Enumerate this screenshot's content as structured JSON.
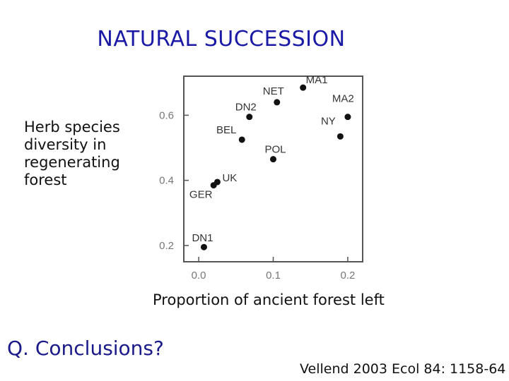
{
  "slide": {
    "title": "NATURAL SUCCESSION",
    "question": "Q. Conclusions?",
    "citation": "Vellend 2003 Ecol 84: 1158-64"
  },
  "chart_data": {
    "type": "scatter",
    "xlabel": "Proportion of ancient forest left",
    "ylabel": "Herb species\ndiversity in\nregenerating\nforest",
    "xlim": [
      -0.02,
      0.22
    ],
    "ylim": [
      0.15,
      0.72
    ],
    "xticks": [
      0.0,
      0.1,
      0.2
    ],
    "xtick_labels": [
      "0.0",
      "0.1",
      "0.2"
    ],
    "yticks": [
      0.2,
      0.4,
      0.6
    ],
    "ytick_labels": [
      "0.2",
      "0.4",
      "0.6"
    ],
    "grid": false,
    "points": [
      {
        "label": "MA1",
        "x": 0.14,
        "y": 0.685
      },
      {
        "label": "NET",
        "x": 0.105,
        "y": 0.64
      },
      {
        "label": "DN2",
        "x": 0.068,
        "y": 0.595
      },
      {
        "label": "MA2",
        "x": 0.2,
        "y": 0.595
      },
      {
        "label": "NY",
        "x": 0.19,
        "y": 0.535
      },
      {
        "label": "BEL",
        "x": 0.058,
        "y": 0.525
      },
      {
        "label": "POL",
        "x": 0.1,
        "y": 0.465
      },
      {
        "label": "UK",
        "x": 0.025,
        "y": 0.395
      },
      {
        "label": "GER",
        "x": 0.02,
        "y": 0.385
      },
      {
        "label": "DN1",
        "x": 0.007,
        "y": 0.195
      }
    ]
  }
}
